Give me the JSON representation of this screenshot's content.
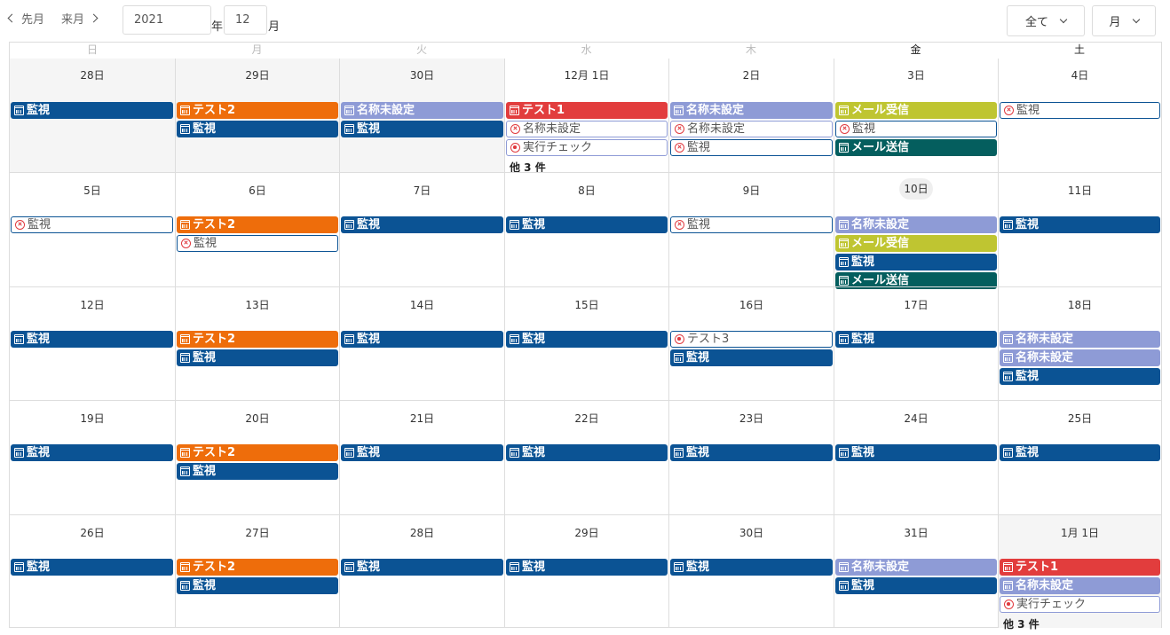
{
  "toolbar": {
    "prev_label": "先月",
    "next_label": "来月",
    "year_value": "2021",
    "year_unit": "年",
    "month_value": "12",
    "month_unit": "月",
    "filter_label": "全て",
    "view_label": "月"
  },
  "weekdays": [
    "日",
    "月",
    "火",
    "水",
    "木",
    "金",
    "土"
  ],
  "colors": {
    "navy": "#0b5394",
    "orange": "#ee6d0b",
    "lavender": "#8e9bd6",
    "red": "#e23d3d",
    "olive": "#bfc531",
    "teal": "#045e5e",
    "outline_border": "#0b5394",
    "outline_border_light": "#8e9bd6"
  },
  "weeks": [
    {
      "days": [
        {
          "label": "28日",
          "grey": true,
          "events": [
            {
              "title": "監視",
              "style": "navy",
              "icon": "cal"
            }
          ]
        },
        {
          "label": "29日",
          "grey": true,
          "events": [
            {
              "title": "テスト2",
              "style": "orange",
              "icon": "cal"
            },
            {
              "title": "監視",
              "style": "navy",
              "icon": "cal"
            }
          ]
        },
        {
          "label": "30日",
          "grey": true,
          "events": [
            {
              "title": "名称未設定",
              "style": "lavender",
              "icon": "cal"
            },
            {
              "title": "監視",
              "style": "navy",
              "icon": "cal"
            }
          ]
        },
        {
          "label": "12月 1日",
          "events": [
            {
              "title": "テスト1",
              "style": "red",
              "icon": "cal"
            },
            {
              "title": "名称未設定",
              "style": "outline-light",
              "icon": "x"
            },
            {
              "title": "実行チェック",
              "style": "outline-light",
              "icon": "dot"
            }
          ],
          "more": "他 3 件"
        },
        {
          "label": "2日",
          "events": [
            {
              "title": "名称未設定",
              "style": "lavender",
              "icon": "cal"
            },
            {
              "title": "名称未設定",
              "style": "outline-light",
              "icon": "x"
            },
            {
              "title": "監視",
              "style": "outline",
              "icon": "x"
            }
          ]
        },
        {
          "label": "3日",
          "events": [
            {
              "title": "メール受信",
              "style": "olive",
              "icon": "cal"
            },
            {
              "title": "監視",
              "style": "outline",
              "icon": "x"
            },
            {
              "title": "メール送信",
              "style": "teal",
              "icon": "cal"
            }
          ]
        },
        {
          "label": "4日",
          "events": [
            {
              "title": "監視",
              "style": "outline",
              "icon": "x"
            }
          ]
        }
      ]
    },
    {
      "days": [
        {
          "label": "5日",
          "events": [
            {
              "title": "監視",
              "style": "outline",
              "icon": "x"
            }
          ]
        },
        {
          "label": "6日",
          "events": [
            {
              "title": "テスト2",
              "style": "orange",
              "icon": "cal"
            },
            {
              "title": "監視",
              "style": "outline",
              "icon": "x"
            }
          ]
        },
        {
          "label": "7日",
          "events": [
            {
              "title": "監視",
              "style": "navy",
              "icon": "cal"
            }
          ]
        },
        {
          "label": "8日",
          "events": [
            {
              "title": "監視",
              "style": "navy",
              "icon": "cal"
            }
          ]
        },
        {
          "label": "9日",
          "events": [
            {
              "title": "監視",
              "style": "outline",
              "icon": "x"
            }
          ]
        },
        {
          "label": "10日",
          "today": true,
          "events": [
            {
              "title": "名称未設定",
              "style": "lavender",
              "icon": "cal"
            },
            {
              "title": "メール受信",
              "style": "olive",
              "icon": "cal"
            },
            {
              "title": "監視",
              "style": "navy",
              "icon": "cal"
            },
            {
              "title": "メール送信",
              "style": "teal",
              "icon": "cal"
            }
          ]
        },
        {
          "label": "11日",
          "events": [
            {
              "title": "監視",
              "style": "navy",
              "icon": "cal"
            }
          ]
        }
      ]
    },
    {
      "days": [
        {
          "label": "12日",
          "events": [
            {
              "title": "監視",
              "style": "navy",
              "icon": "cal"
            }
          ]
        },
        {
          "label": "13日",
          "events": [
            {
              "title": "テスト2",
              "style": "orange",
              "icon": "cal"
            },
            {
              "title": "監視",
              "style": "navy",
              "icon": "cal"
            }
          ]
        },
        {
          "label": "14日",
          "events": [
            {
              "title": "監視",
              "style": "navy",
              "icon": "cal"
            }
          ]
        },
        {
          "label": "15日",
          "events": [
            {
              "title": "監視",
              "style": "navy",
              "icon": "cal"
            }
          ]
        },
        {
          "label": "16日",
          "events": [
            {
              "title": "テスト3",
              "style": "outline",
              "icon": "dot"
            },
            {
              "title": "監視",
              "style": "navy",
              "icon": "cal"
            }
          ]
        },
        {
          "label": "17日",
          "events": [
            {
              "title": "監視",
              "style": "navy",
              "icon": "cal"
            }
          ]
        },
        {
          "label": "18日",
          "events": [
            {
              "title": "名称未設定",
              "style": "lavender",
              "icon": "cal"
            },
            {
              "title": "名称未設定",
              "style": "lavender",
              "icon": "cal"
            },
            {
              "title": "監視",
              "style": "navy",
              "icon": "cal"
            }
          ]
        }
      ]
    },
    {
      "days": [
        {
          "label": "19日",
          "events": [
            {
              "title": "監視",
              "style": "navy",
              "icon": "cal"
            }
          ]
        },
        {
          "label": "20日",
          "events": [
            {
              "title": "テスト2",
              "style": "orange",
              "icon": "cal"
            },
            {
              "title": "監視",
              "style": "navy",
              "icon": "cal"
            }
          ]
        },
        {
          "label": "21日",
          "events": [
            {
              "title": "監視",
              "style": "navy",
              "icon": "cal"
            }
          ]
        },
        {
          "label": "22日",
          "events": [
            {
              "title": "監視",
              "style": "navy",
              "icon": "cal"
            }
          ]
        },
        {
          "label": "23日",
          "events": [
            {
              "title": "監視",
              "style": "navy",
              "icon": "cal"
            }
          ]
        },
        {
          "label": "24日",
          "events": [
            {
              "title": "監視",
              "style": "navy",
              "icon": "cal"
            }
          ]
        },
        {
          "label": "25日",
          "events": [
            {
              "title": "監視",
              "style": "navy",
              "icon": "cal"
            }
          ]
        }
      ]
    },
    {
      "days": [
        {
          "label": "26日",
          "events": [
            {
              "title": "監視",
              "style": "navy",
              "icon": "cal"
            }
          ]
        },
        {
          "label": "27日",
          "events": [
            {
              "title": "テスト2",
              "style": "orange",
              "icon": "cal"
            },
            {
              "title": "監視",
              "style": "navy",
              "icon": "cal"
            }
          ]
        },
        {
          "label": "28日",
          "events": [
            {
              "title": "監視",
              "style": "navy",
              "icon": "cal"
            }
          ]
        },
        {
          "label": "29日",
          "events": [
            {
              "title": "監視",
              "style": "navy",
              "icon": "cal"
            }
          ]
        },
        {
          "label": "30日",
          "events": [
            {
              "title": "監視",
              "style": "navy",
              "icon": "cal"
            }
          ]
        },
        {
          "label": "31日",
          "events": [
            {
              "title": "名称未設定",
              "style": "lavender",
              "icon": "cal"
            },
            {
              "title": "監視",
              "style": "navy",
              "icon": "cal"
            }
          ]
        },
        {
          "label": "1月 1日",
          "grey": true,
          "events": [
            {
              "title": "テスト1",
              "style": "red",
              "icon": "cal"
            },
            {
              "title": "名称未設定",
              "style": "lavender",
              "icon": "cal"
            },
            {
              "title": "実行チェック",
              "style": "outline-light",
              "icon": "dot"
            }
          ],
          "more": "他 3 件"
        }
      ]
    }
  ]
}
